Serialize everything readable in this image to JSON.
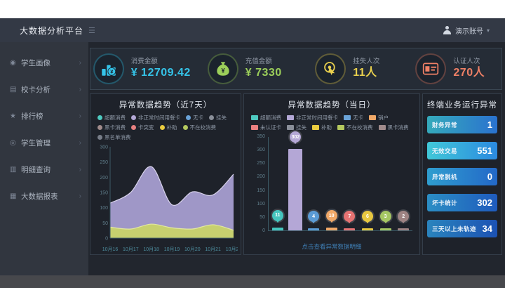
{
  "topbar": {
    "user_name": "演示账号",
    "caret": "▾",
    "menu_icon": "hamburger-icon"
  },
  "sidebar": {
    "brand": "大数据分析平台",
    "items": [
      {
        "label": "学生画像",
        "icon": "student-icon"
      },
      {
        "label": "校卡分析",
        "icon": "card-icon"
      },
      {
        "label": "排行榜",
        "icon": "ranking-icon"
      },
      {
        "label": "学生管理",
        "icon": "manage-icon"
      },
      {
        "label": "明细查询",
        "icon": "query-icon"
      },
      {
        "label": "大数据报表",
        "icon": "report-icon"
      }
    ]
  },
  "kpis": {
    "items": [
      {
        "label": "消费金额",
        "value": "¥ 12709.42",
        "color": "#35c3e8",
        "icon": "chart-coins-icon"
      },
      {
        "label": "充值金额",
        "value": "¥ 7330",
        "color": "#9ccf5a",
        "icon": "money-bag-icon"
      },
      {
        "label": "挂失人次",
        "value": "11人",
        "color": "#e9d04e",
        "icon": "touch-click-icon"
      },
      {
        "label": "认证人次",
        "value": "270人",
        "color": "#ef8066",
        "icon": "id-card-icon"
      }
    ]
  },
  "panels": {
    "trend7": {
      "title": "异常数据趋势（近7天）"
    },
    "today": {
      "title": "异常数据趋势（当日）",
      "footer": "点击查看异常数据明细"
    },
    "terminal": {
      "title": "终端业务运行异常",
      "items": [
        {
          "label": "财务异常",
          "value": "1",
          "from": "#35aabb",
          "to": "#2a72cf"
        },
        {
          "label": "无效交易",
          "value": "551",
          "from": "#41c8d8",
          "to": "#2b8ae0"
        },
        {
          "label": "异常脱机",
          "value": "0",
          "from": "#2f9ecf",
          "to": "#2368c8"
        },
        {
          "label": "坏卡统计",
          "value": "302",
          "from": "#2b8ec4",
          "to": "#1f5bbd"
        },
        {
          "label": "三天以上未轨迹",
          "value": "34",
          "from": "#2a84bd",
          "to": "#1c52b4"
        }
      ]
    }
  },
  "chart_data": [
    {
      "type": "area",
      "title": "异常数据趋势（近7天）",
      "x": [
        "10月16",
        "10月17",
        "10月18",
        "10月19",
        "10月20",
        "10月21",
        "10月22"
      ],
      "ylim": [
        0,
        300
      ],
      "yticks": [
        0,
        50,
        100,
        150,
        200,
        250,
        300
      ],
      "grid": false,
      "legend_position": "top",
      "legend": [
        {
          "label": "超额消费",
          "color": "#4ec9c0"
        },
        {
          "label": "非正常时间用餐卡",
          "color": "#b3a8d6"
        },
        {
          "label": "无卡",
          "color": "#6aa3d8"
        },
        {
          "label": "挂失",
          "color": "#8a8f99"
        },
        {
          "label": "黑卡消费",
          "color": "#a08b8b"
        },
        {
          "label": "卡突变",
          "color": "#e88080"
        },
        {
          "label": "补助",
          "color": "#e9cb3f"
        },
        {
          "label": "不在校消费",
          "color": "#b5c95e"
        },
        {
          "label": "黑名单消费",
          "color": "#777d88"
        }
      ],
      "series": [
        {
          "name": "非正常时间用餐卡",
          "color": "#a79ed0",
          "line": "#d8d3ec",
          "values": [
            115,
            150,
            235,
            110,
            152,
            142,
            210
          ]
        },
        {
          "name": "补助",
          "color": "#c9d36a",
          "line": "#e2e8a0",
          "values": [
            36,
            30,
            46,
            34,
            30,
            44,
            26
          ]
        }
      ]
    },
    {
      "type": "bar",
      "title": "异常数据趋势（当日）",
      "ylim": [
        0,
        350
      ],
      "yticks": [
        0,
        50,
        100,
        150,
        200,
        250,
        300,
        350
      ],
      "grid": false,
      "legend_position": "top",
      "legend": [
        {
          "label": "超额消费",
          "color": "#4ec9c0"
        },
        {
          "label": "非正常时间用餐卡",
          "color": "#b3a8d6"
        },
        {
          "label": "无卡",
          "color": "#6aa3d8"
        },
        {
          "label": "销户",
          "color": "#f0a868"
        },
        {
          "label": "未认证卡",
          "color": "#e88080"
        },
        {
          "label": "挂失",
          "color": "#8a8f99"
        },
        {
          "label": "补助",
          "color": "#e9cb3f"
        },
        {
          "label": "不在校消费",
          "color": "#b5c95e"
        },
        {
          "label": "黑卡消费",
          "color": "#a08b8b"
        }
      ],
      "categories": [
        "超额消费",
        "非正常时间用餐卡",
        "无卡",
        "销户",
        "未认证卡",
        "补助",
        "不在校消费",
        "黑卡消费"
      ],
      "values": [
        11,
        302,
        4,
        10,
        7,
        6,
        3,
        2
      ],
      "colors": [
        "#45c5bd",
        "#b4a7d6",
        "#5b9bd5",
        "#f0a868",
        "#e57373",
        "#e8c840",
        "#a5c663",
        "#9e8383"
      ]
    }
  ]
}
